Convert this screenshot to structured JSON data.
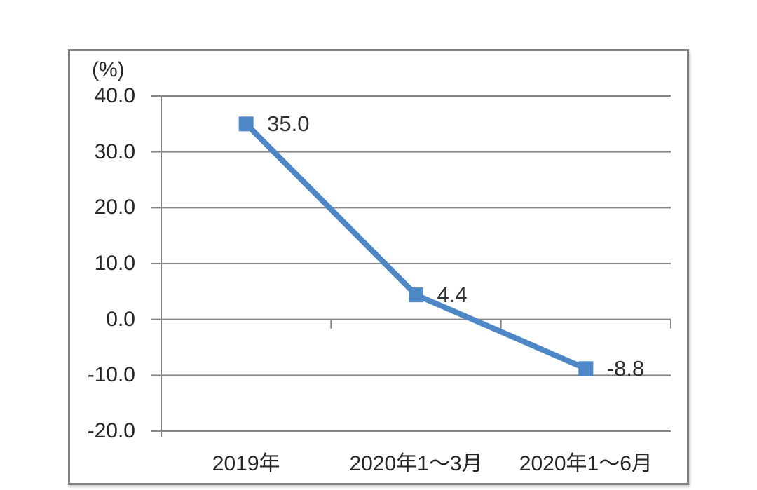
{
  "chart_data": {
    "type": "line",
    "unit_label": "(%)",
    "categories": [
      "2019年",
      "2020年1～3月",
      "2020年1～6月"
    ],
    "values": [
      35.0,
      4.4,
      -8.8
    ],
    "value_labels": [
      "35.0",
      "4.4",
      "-8.8"
    ],
    "y_ticks": [
      40.0,
      30.0,
      20.0,
      10.0,
      0.0,
      -10.0,
      -20.0
    ],
    "y_tick_labels": [
      "40.0",
      "30.0",
      "20.0",
      "10.0",
      "0.0",
      "-10.0",
      "-20.0"
    ],
    "ylim": [
      -20,
      40
    ],
    "grid": true,
    "legend": "none",
    "line_color": "#4E87C5",
    "marker_shape": "square",
    "gridline_color": "#878787",
    "axis_color": "#808080",
    "frame_border_color": "#808080",
    "text_color": "#262626"
  }
}
